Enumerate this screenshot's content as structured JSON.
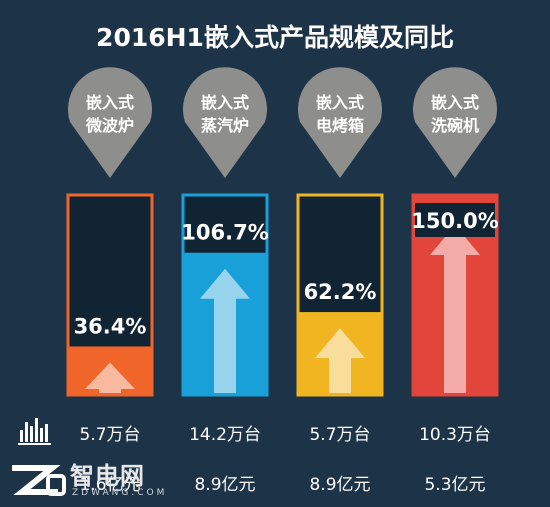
{
  "title": "2016H1嵌入式产品规模及同比",
  "colors": {
    "background": "#1d3448",
    "microwave": "#f0652a",
    "steam": "#1aa0d8",
    "oven": "#f2b522",
    "dishwasher": "#e2463a",
    "pin": "#8e8e8c"
  },
  "icons": {
    "units_row": "bar-chart-icon",
    "revenue_row": "money-icon"
  },
  "watermark": {
    "text": "智电网",
    "sub": "ZDWANG.COM"
  },
  "chart_data": {
    "type": "bar",
    "categories": [
      "嵌入式微波炉",
      "嵌入式蒸汽炉",
      "嵌入式电烤箱",
      "嵌入式洗碗机"
    ],
    "pin_lines": [
      [
        "嵌入式",
        "微波炉"
      ],
      [
        "嵌入式",
        "蒸汽炉"
      ],
      [
        "嵌入式",
        "电烤箱"
      ],
      [
        "嵌入式",
        "洗碗机"
      ]
    ],
    "values": [
      36.4,
      106.7,
      62.2,
      150.0
    ],
    "value_labels": [
      "36.4%",
      "106.7%",
      "62.2%",
      "150.0%"
    ],
    "ylim": [
      0,
      150
    ],
    "units": [
      "5.7万台",
      "14.2万台",
      "5.7万台",
      "10.3万台"
    ],
    "revenue": [
      "1.6亿元",
      "8.9亿元",
      "8.9亿元",
      "5.3亿元"
    ]
  }
}
